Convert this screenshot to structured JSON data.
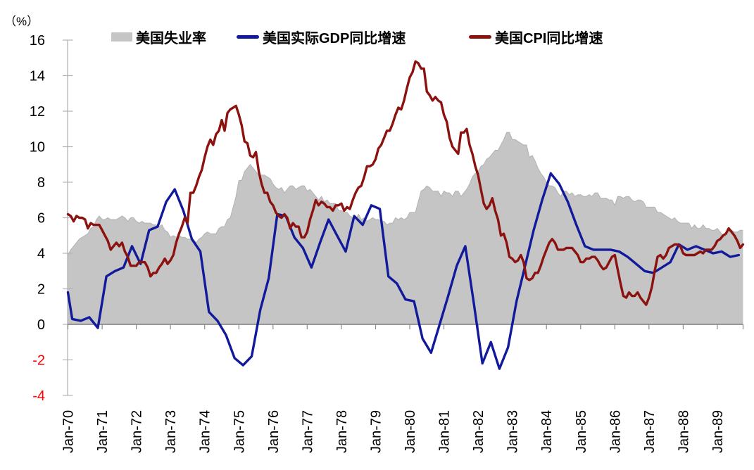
{
  "chart_data": {
    "type": "area+line",
    "unit_label": "（%）",
    "ylim": [
      -4,
      16
    ],
    "y_ticks": [
      16,
      14,
      12,
      10,
      8,
      6,
      4,
      2,
      0,
      -2,
      -4
    ],
    "negative_tick_color": "#FF0000",
    "x_tick_labels": [
      "Jan-70",
      "Jan-71",
      "Jan-72",
      "Jan-73",
      "Jan-74",
      "Jan-75",
      "Jan-76",
      "Jan-77",
      "Jan-78",
      "Jan-79",
      "Jan-80",
      "Jan-81",
      "Jan-82",
      "Jan-83",
      "Jan-84",
      "Jan-85",
      "Jan-86",
      "Jan-87",
      "Jan-88",
      "Jan-89"
    ],
    "legend_position": "top",
    "grid": false,
    "series": [
      {
        "name": "美国失业率",
        "type": "area",
        "color": "#C5C5C5",
        "freq": "monthly",
        "start": "Jan-70",
        "values": [
          3.9,
          4.2,
          4.4,
          4.6,
          4.8,
          4.9,
          5.0,
          5.1,
          5.4,
          5.5,
          5.9,
          6.1,
          5.9,
          5.9,
          6.0,
          5.9,
          5.9,
          5.9,
          6.0,
          6.1,
          6.0,
          5.8,
          6.0,
          6.0,
          5.8,
          5.7,
          5.8,
          5.7,
          5.7,
          5.7,
          5.6,
          5.6,
          5.5,
          5.6,
          5.3,
          5.2,
          4.9,
          5.0,
          4.9,
          5.0,
          4.9,
          4.9,
          4.8,
          4.8,
          4.8,
          4.6,
          4.8,
          4.9,
          5.1,
          5.2,
          5.1,
          5.1,
          5.1,
          5.4,
          5.5,
          5.5,
          5.9,
          6.0,
          6.6,
          7.2,
          8.1,
          8.1,
          8.6,
          8.8,
          9.0,
          8.8,
          8.6,
          8.4,
          8.4,
          8.4,
          8.3,
          8.2,
          7.9,
          7.7,
          7.6,
          7.7,
          7.4,
          7.6,
          7.8,
          7.8,
          7.6,
          7.7,
          7.8,
          7.8,
          7.5,
          7.6,
          7.4,
          7.2,
          7.0,
          7.2,
          6.9,
          7.0,
          6.8,
          6.8,
          6.8,
          6.4,
          6.4,
          6.3,
          6.3,
          6.1,
          6.0,
          5.9,
          6.2,
          5.9,
          6.0,
          5.8,
          5.9,
          6.0,
          5.9,
          5.9,
          5.8,
          5.8,
          5.6,
          5.7,
          5.7,
          6.0,
          5.9,
          6.0,
          5.9,
          6.0,
          6.3,
          6.3,
          6.3,
          6.9,
          7.5,
          7.6,
          7.8,
          7.7,
          7.5,
          7.5,
          7.5,
          7.2,
          7.5,
          7.4,
          7.4,
          7.2,
          7.5,
          7.5,
          7.2,
          7.4,
          7.6,
          7.9,
          8.3,
          8.5,
          8.6,
          8.9,
          9.0,
          9.3,
          9.4,
          9.6,
          9.8,
          9.8,
          10.1,
          10.4,
          10.8,
          10.8,
          10.4,
          10.4,
          10.3,
          10.2,
          10.1,
          10.1,
          9.4,
          9.5,
          9.2,
          8.8,
          8.5,
          8.3,
          8.0,
          7.8,
          7.8,
          7.7,
          7.4,
          7.2,
          7.5,
          7.5,
          7.3,
          7.4,
          7.2,
          7.3,
          7.3,
          7.2,
          7.2,
          7.3,
          7.2,
          7.4,
          7.4,
          7.1,
          7.1,
          7.1,
          7.0,
          7.0,
          6.7,
          7.2,
          7.2,
          7.1,
          7.2,
          7.2,
          7.0,
          6.9,
          7.0,
          7.0,
          6.9,
          6.6,
          6.6,
          6.6,
          6.6,
          6.3,
          6.3,
          6.2,
          6.1,
          6.0,
          5.9,
          6.0,
          5.8,
          5.7,
          5.7,
          5.7,
          5.7,
          5.4,
          5.6,
          5.4,
          5.4,
          5.6,
          5.4,
          5.4,
          5.3,
          5.3,
          5.4,
          5.2,
          5.0,
          5.2,
          5.2,
          5.3,
          5.2,
          5.2,
          5.3,
          5.3
        ]
      },
      {
        "name": "美国实际GDP同比增速",
        "type": "line",
        "color": "#121A9C",
        "freq": "quarterly",
        "start": "1970-Q1",
        "lead_in_value": 1.8,
        "values": [
          0.3,
          0.2,
          0.4,
          -0.2,
          2.7,
          3.0,
          3.2,
          4.4,
          3.4,
          5.3,
          5.5,
          6.9,
          7.6,
          6.4,
          4.8,
          4.1,
          0.7,
          0.2,
          -0.6,
          -1.9,
          -2.3,
          -1.8,
          0.8,
          2.6,
          6.2,
          6.1,
          4.9,
          4.3,
          3.2,
          4.6,
          5.9,
          5.0,
          4.1,
          6.1,
          5.6,
          6.7,
          6.5,
          2.7,
          2.3,
          1.4,
          1.3,
          -0.8,
          -1.6,
          0.0,
          1.6,
          3.3,
          4.4,
          1.2,
          -2.2,
          -1.0,
          -2.5,
          -1.3,
          1.3,
          3.3,
          5.3,
          7.0,
          8.5,
          7.9,
          6.9,
          5.6,
          4.4,
          4.2,
          4.2,
          4.2,
          4.1,
          3.8,
          3.4,
          3.0,
          2.9,
          3.2,
          3.5,
          4.5,
          4.2,
          4.4,
          4.2,
          4.0,
          4.1,
          3.8,
          3.9
        ]
      },
      {
        "name": "美国CPI同比增速",
        "type": "line",
        "color": "#8C1210",
        "freq": "monthly",
        "start": "Jan-70",
        "values": [
          6.2,
          6.1,
          5.8,
          6.1,
          6.0,
          6.0,
          5.9,
          5.4,
          5.7,
          5.6,
          5.6,
          5.6,
          5.3,
          5.0,
          4.7,
          4.2,
          4.4,
          4.6,
          4.4,
          4.6,
          4.1,
          3.8,
          3.3,
          3.3,
          3.3,
          3.5,
          3.5,
          3.5,
          3.2,
          2.7,
          2.9,
          2.9,
          3.2,
          3.4,
          3.7,
          3.4,
          3.6,
          3.9,
          4.6,
          5.1,
          5.5,
          6.0,
          5.7,
          7.4,
          7.4,
          7.8,
          8.3,
          8.7,
          9.4,
          10.0,
          10.4,
          10.1,
          10.7,
          10.9,
          11.5,
          10.9,
          11.9,
          12.1,
          12.2,
          12.3,
          11.8,
          11.2,
          10.3,
          10.2,
          9.5,
          9.4,
          9.7,
          8.6,
          7.9,
          7.4,
          7.4,
          6.9,
          6.7,
          6.3,
          6.1,
          6.0,
          6.2,
          6.0,
          5.4,
          5.7,
          5.5,
          5.5,
          4.9,
          4.9,
          5.2,
          5.9,
          6.4,
          7.0,
          6.7,
          6.9,
          6.8,
          6.6,
          6.6,
          6.4,
          6.7,
          6.7,
          6.8,
          6.4,
          6.6,
          6.5,
          7.0,
          7.4,
          7.7,
          7.8,
          8.3,
          8.9,
          8.9,
          9.0,
          9.3,
          9.9,
          10.1,
          10.5,
          10.9,
          10.9,
          11.3,
          11.8,
          12.2,
          12.1,
          12.6,
          13.3,
          13.9,
          14.2,
          14.8,
          14.7,
          14.4,
          14.4,
          13.1,
          12.9,
          12.6,
          12.8,
          12.6,
          12.5,
          11.8,
          11.4,
          10.5,
          10.0,
          9.8,
          9.6,
          10.8,
          10.8,
          11.0,
          10.1,
          9.6,
          8.9,
          8.4,
          7.6,
          6.8,
          6.5,
          6.7,
          7.1,
          6.4,
          5.9,
          5.0,
          5.1,
          4.6,
          3.8,
          3.7,
          3.5,
          3.6,
          3.9,
          3.5,
          2.6,
          2.5,
          2.6,
          2.9,
          2.9,
          3.3,
          3.8,
          4.2,
          4.6,
          4.8,
          4.6,
          4.2,
          4.2,
          4.2,
          4.3,
          4.3,
          4.3,
          4.1,
          3.9,
          3.5,
          3.5,
          3.7,
          3.7,
          3.8,
          3.8,
          3.6,
          3.3,
          3.1,
          3.2,
          3.5,
          3.8,
          3.9,
          3.1,
          2.3,
          1.6,
          1.5,
          1.8,
          1.6,
          1.6,
          1.8,
          1.5,
          1.3,
          1.1,
          1.5,
          2.1,
          3.0,
          3.8,
          3.9,
          3.7,
          3.9,
          4.3,
          4.4,
          4.5,
          4.5,
          4.4,
          4.0,
          3.9,
          3.9,
          3.9,
          3.9,
          4.0,
          4.1,
          4.0,
          4.2,
          4.2,
          4.2,
          4.4,
          4.7,
          4.8,
          5.0,
          5.1,
          5.4,
          5.2,
          5.0,
          4.7,
          4.3,
          4.5
        ]
      }
    ]
  }
}
